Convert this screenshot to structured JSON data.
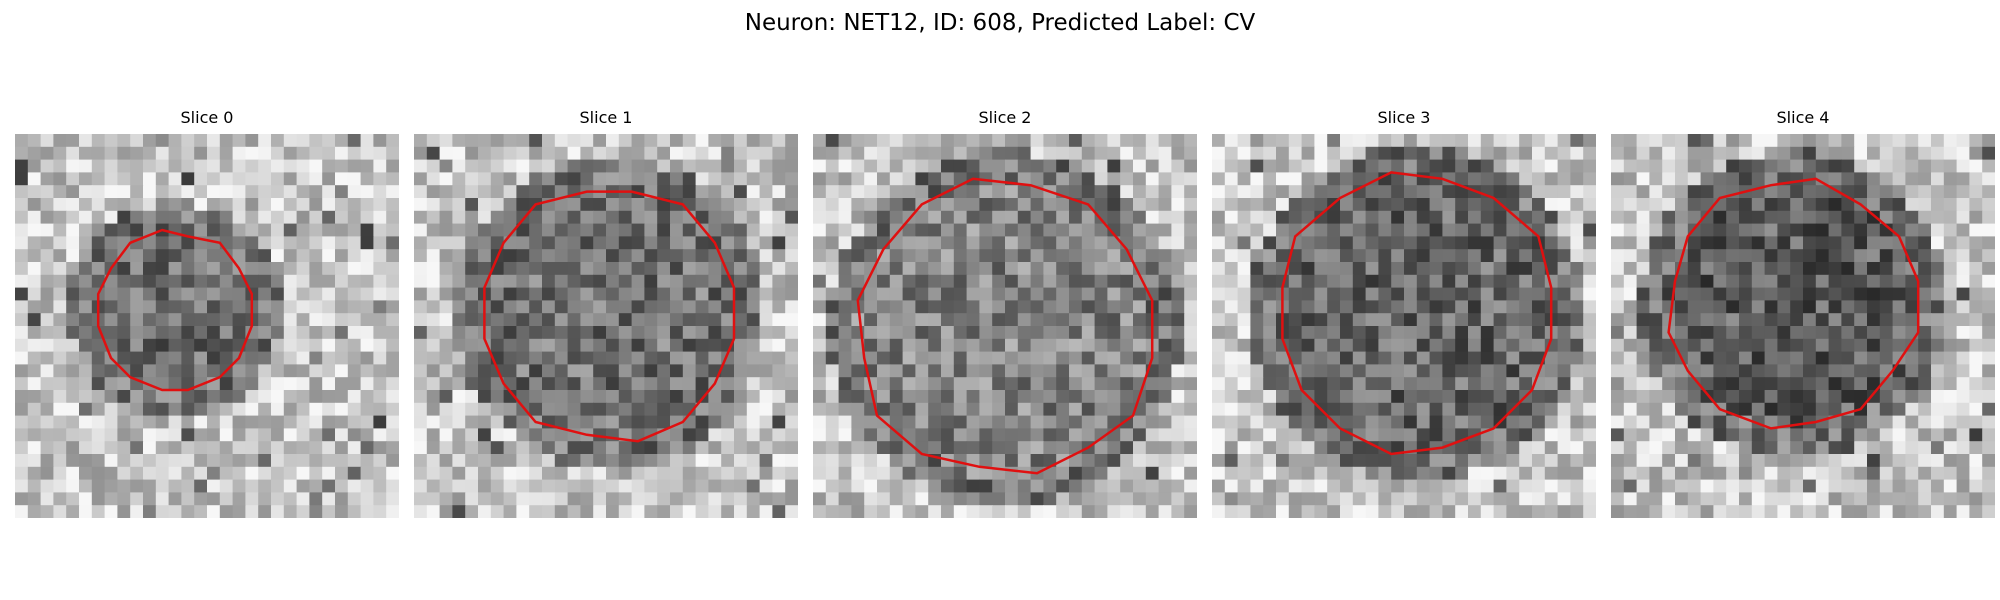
{
  "figure": {
    "title": "Neuron: NET12, ID: 608, Predicted Label: CV",
    "grid_size": 30,
    "contour_color": "#e01010",
    "slices": [
      {
        "title": "Slice 0",
        "cx": 12.5,
        "cy": 13.8,
        "r": 6.2,
        "dark": 0.55,
        "seed": 11
      },
      {
        "title": "Slice 1",
        "cx": 15.3,
        "cy": 14.0,
        "r": 10.0,
        "dark": 0.5,
        "seed": 23
      },
      {
        "title": "Slice 2",
        "cx": 15.0,
        "cy": 15.2,
        "r": 11.6,
        "dark": 0.3,
        "seed": 37
      },
      {
        "title": "Slice 3",
        "cx": 16.0,
        "cy": 14.0,
        "r": 11.0,
        "dark": 0.62,
        "seed": 41
      },
      {
        "title": "Slice 4",
        "cx": 14.2,
        "cy": 13.4,
        "r": 9.8,
        "dark": 0.72,
        "seed": 59
      }
    ]
  }
}
